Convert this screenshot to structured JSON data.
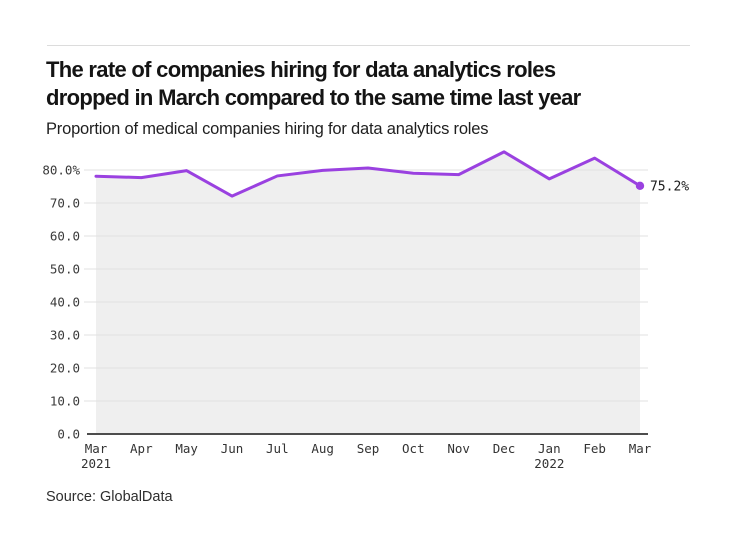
{
  "page": {
    "title_line1": "The rate of companies hiring for data analytics roles",
    "title_line2": "dropped in March compared to the same time last year",
    "subtitle": "Proportion of medical companies hiring for data analytics roles",
    "source": "Source: GlobalData"
  },
  "chart_data": {
    "type": "area",
    "title": "The rate of companies hiring for data analytics roles dropped in March compared to the same time last year",
    "subtitle": "Proportion of medical companies hiring for data analytics roles",
    "categories": [
      "Mar 2021",
      "Apr",
      "May",
      "Jun",
      "Jul",
      "Aug",
      "Sep",
      "Oct",
      "Nov",
      "Dec",
      "Jan 2022",
      "Feb",
      "Mar"
    ],
    "values": [
      78.1,
      77.7,
      79.8,
      72.1,
      78.2,
      79.9,
      80.6,
      79.0,
      78.6,
      85.5,
      77.3,
      83.6,
      75.2
    ],
    "end_point_label": "75.2%",
    "xlabel": "",
    "ylabel": "",
    "ylim": [
      0,
      88
    ],
    "grid": true,
    "legend": "none",
    "y_ticks": [
      {
        "value": 80,
        "label": "80.0%"
      },
      {
        "value": 70,
        "label": "70.0"
      },
      {
        "value": 60,
        "label": "60.0"
      },
      {
        "value": 50,
        "label": "50.0"
      },
      {
        "value": 40,
        "label": "40.0"
      },
      {
        "value": 30,
        "label": "30.0"
      },
      {
        "value": 20,
        "label": "20.0"
      },
      {
        "value": 10,
        "label": "10.0"
      },
      {
        "value": 0,
        "label": "0.0"
      }
    ],
    "colors": {
      "line": "#9a41e0",
      "area_fill": "#efefef",
      "gridline": "#e1e1e1",
      "axis_line": "#4d4d4d",
      "marker": "#9a41e0"
    }
  }
}
